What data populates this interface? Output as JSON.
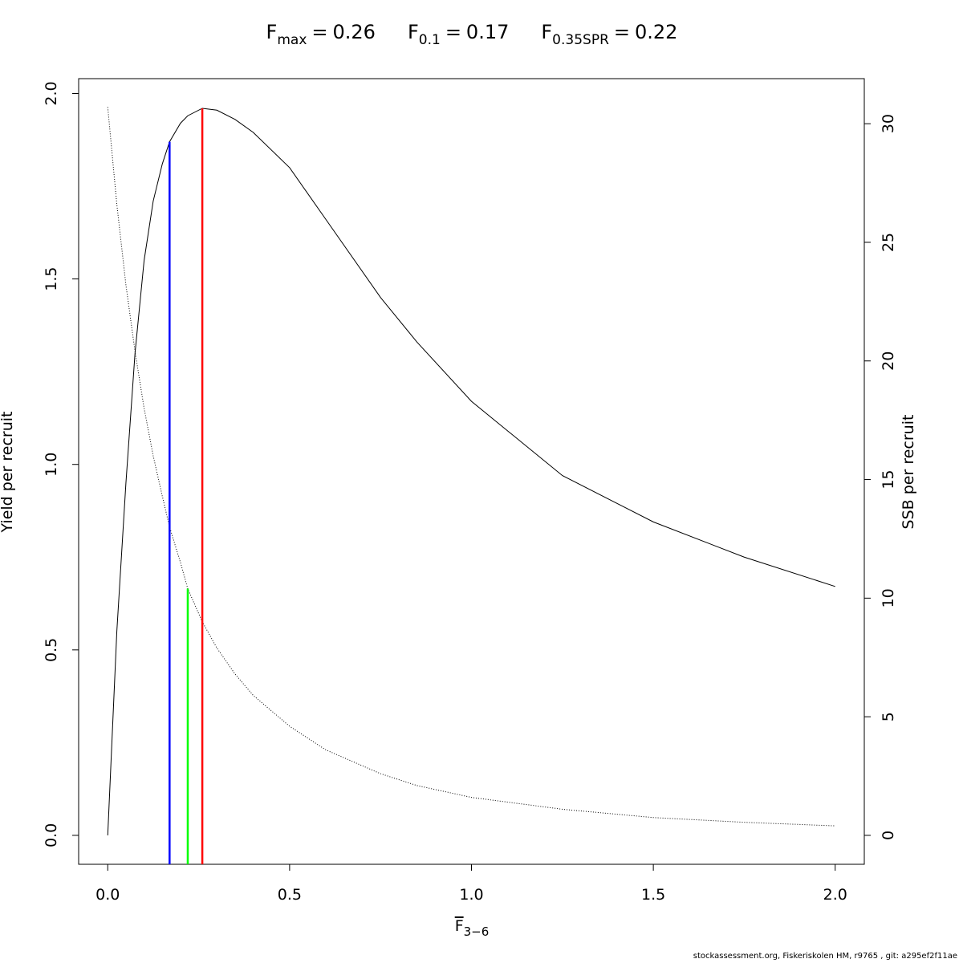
{
  "chart_data": {
    "type": "line",
    "title_parts": [
      {
        "base": "F",
        "sub": "max",
        "sep": "=",
        "value": 0.26,
        "color": "#ff0000",
        "height": 1.96,
        "axis": "y"
      },
      {
        "base": "F",
        "sub": "0.1",
        "sep": "=",
        "value": 0.17,
        "color": "#0000ff",
        "height": 1.87,
        "axis": "y"
      },
      {
        "base": "F",
        "sub": "0.35SPR",
        "sep": "=",
        "value": 0.22,
        "color": "#00ff00",
        "height": 10.4,
        "axis": "y2"
      }
    ],
    "xlabel": {
      "base": "F",
      "sub": "3−6"
    },
    "ylabel": "Yield per recruit",
    "y2label": "SSB per recruit",
    "footer": "stockassessment.org, Fiskeriskolen HM, r9765 , git: a295ef2f11ae",
    "x": [
      0,
      0.025,
      0.05,
      0.075,
      0.1,
      0.125,
      0.15,
      0.17,
      0.2,
      0.22,
      0.26,
      0.3,
      0.35,
      0.4,
      0.5,
      0.6,
      0.75,
      0.85,
      1.0,
      1.25,
      1.5,
      1.75,
      2.0
    ],
    "series": [
      {
        "name": "Yield per recruit",
        "color": "#000000",
        "axis": "y",
        "dash": "solid",
        "values": [
          0,
          0.55,
          0.95,
          1.3,
          1.55,
          1.71,
          1.81,
          1.87,
          1.92,
          1.94,
          1.96,
          1.955,
          1.93,
          1.895,
          1.8,
          1.66,
          1.45,
          1.33,
          1.17,
          0.97,
          0.845,
          0.75,
          0.671
        ]
      },
      {
        "name": "SSB per recruit",
        "color": "#000000",
        "axis": "y2",
        "dash": "dotted",
        "values": [
          30.7,
          26.6,
          23.2,
          20.4,
          18.0,
          16.0,
          14.3,
          13.0,
          11.5,
          10.4,
          9.0,
          7.9,
          6.8,
          5.9,
          4.6,
          3.6,
          2.6,
          2.1,
          1.6,
          1.1,
          0.75,
          0.55,
          0.4
        ]
      }
    ],
    "xlim": [
      -0.08,
      2.08
    ],
    "xticks": [
      {
        "value": 0,
        "label": "0.0"
      },
      0.5,
      {
        "value": 1,
        "label": "1.0"
      },
      1.5,
      {
        "value": 2,
        "label": "2.0"
      }
    ],
    "ylim": [
      -0.078,
      2.04
    ],
    "yticks": [
      {
        "value": 0,
        "label": "0.0"
      },
      0.5,
      {
        "value": 1,
        "label": "1.0"
      },
      1.5,
      {
        "value": 2,
        "label": "2.0"
      }
    ],
    "y2lim": [
      -1.22,
      31.9
    ],
    "y2ticks": [
      0,
      5,
      10,
      15,
      20,
      25,
      30
    ],
    "grid": false
  }
}
